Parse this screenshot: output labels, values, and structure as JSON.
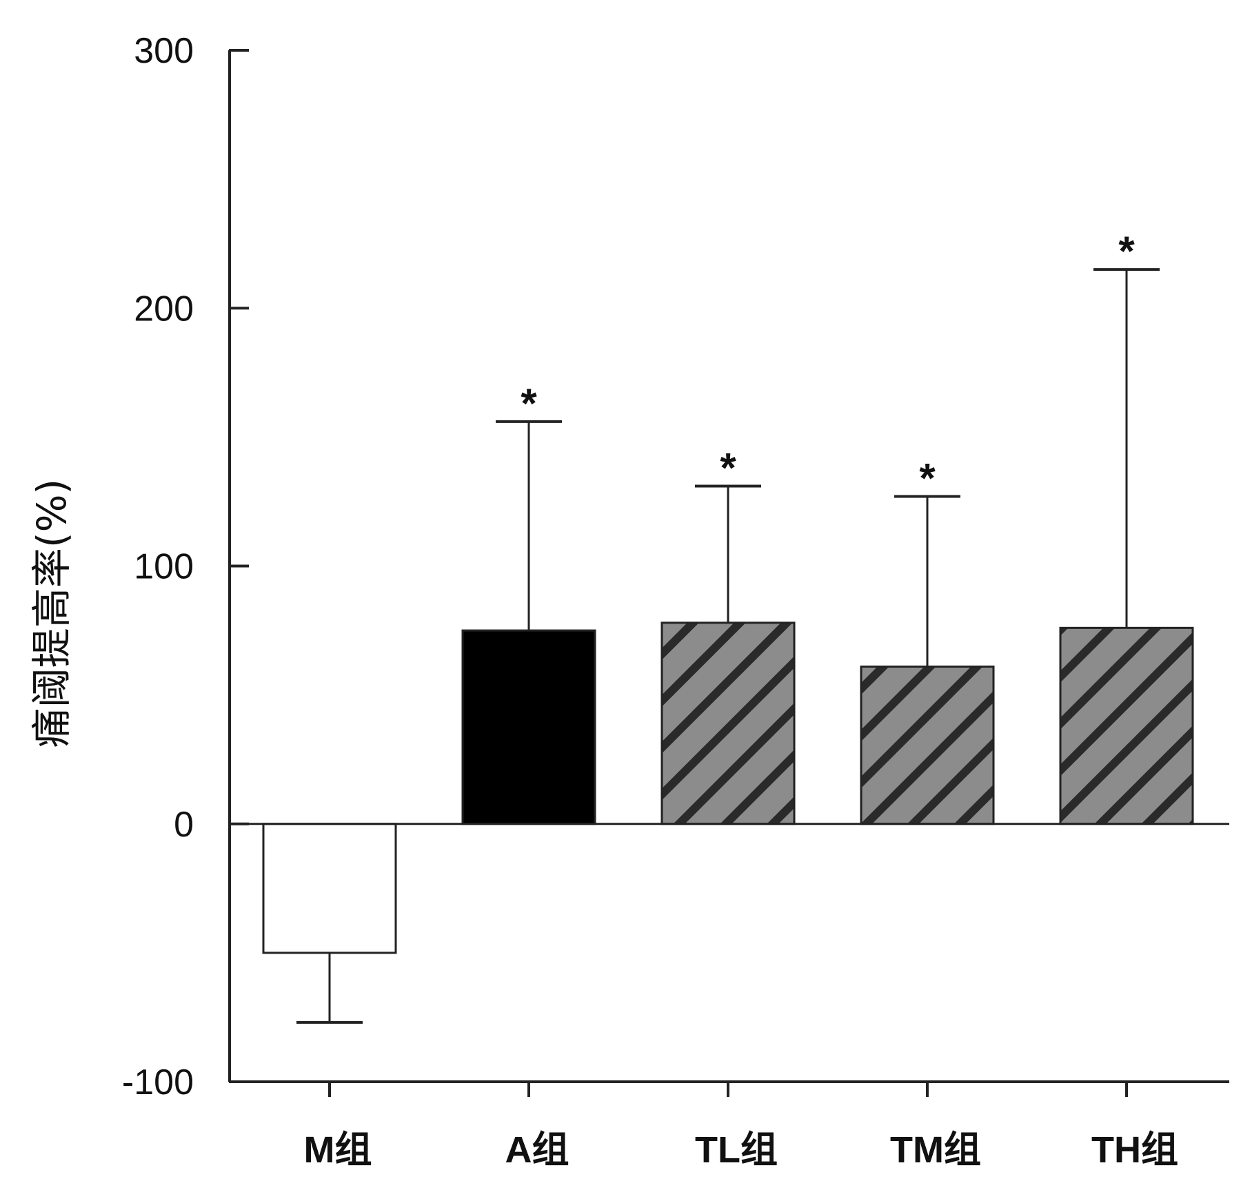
{
  "chart_data": {
    "type": "bar",
    "title": "",
    "xlabel": "",
    "ylabel": "痛阈提高率(%)",
    "ylim": [
      -100,
      300
    ],
    "yticks": [
      -100,
      0,
      100,
      200,
      300
    ],
    "categories": [
      "M组",
      "A组",
      "TL组",
      "TM组",
      "TH组"
    ],
    "values": [
      -50,
      75,
      78,
      61,
      76
    ],
    "errors": [
      27,
      81,
      53,
      66,
      139
    ],
    "significance": [
      "",
      "*",
      "*",
      "*",
      "*"
    ],
    "bar_styles": [
      "white",
      "black",
      "hatched",
      "hatched",
      "hatched"
    ],
    "colors": {
      "axis": "#222222",
      "white_fill": "#ffffff",
      "black_fill": "#000000",
      "hatch_fill": "#8c8c8c",
      "hatch_line": "#2a2a2a"
    },
    "grid": false,
    "legend": "none"
  }
}
